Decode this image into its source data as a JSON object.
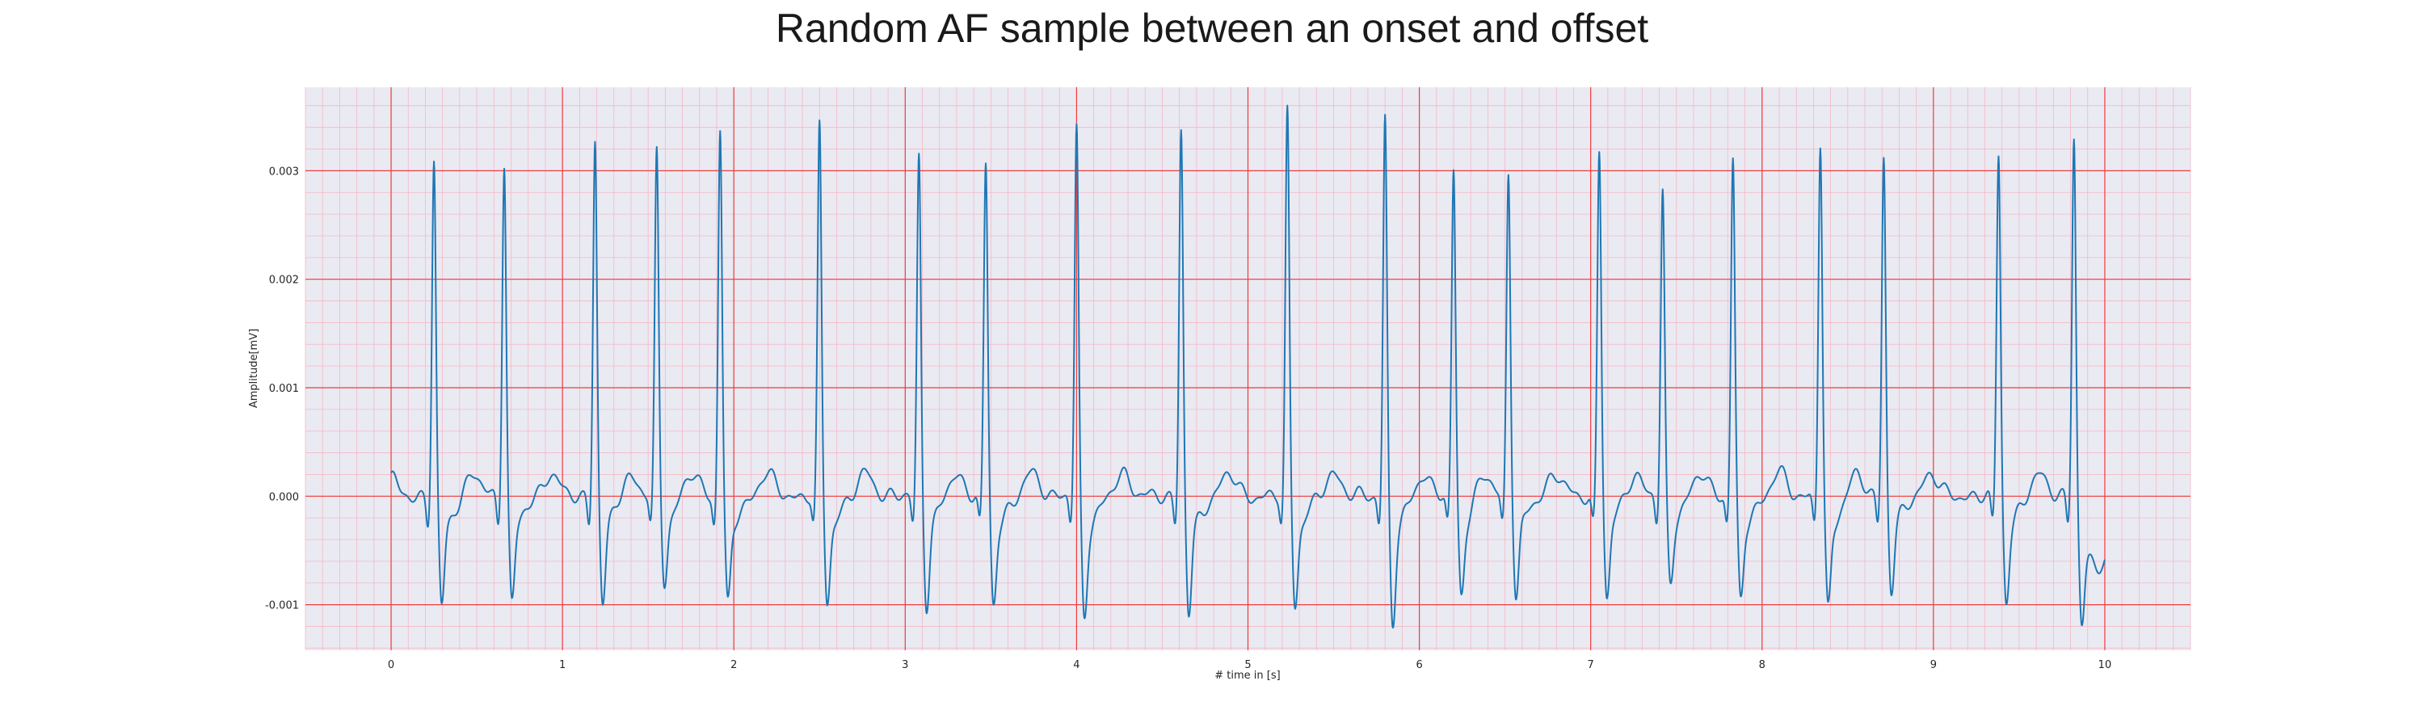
{
  "chart_data": {
    "type": "line",
    "title": "Random AF sample between an onset and offset",
    "xlabel": "# time in [s]",
    "ylabel": "Amplitude[mV]",
    "xlim": [
      -0.5,
      10.5
    ],
    "ylim": [
      -0.00142,
      0.00377
    ],
    "x_ticks": [
      0,
      1,
      2,
      3,
      4,
      5,
      6,
      7,
      8,
      9,
      10
    ],
    "x_tick_labels": [
      "0",
      "1",
      "2",
      "3",
      "4",
      "5",
      "6",
      "7",
      "8",
      "9",
      "10"
    ],
    "y_ticks": [
      -0.001,
      0.0,
      0.001,
      0.002,
      0.003
    ],
    "y_tick_labels": [
      "-0.001",
      "0.000",
      "0.001",
      "0.002",
      "0.003"
    ],
    "grid": true,
    "minor_grid": true,
    "series": [
      {
        "color": "#1f77b4",
        "beats": [
          {
            "t": 0.25,
            "r": 0.0031,
            "s": -0.00102
          },
          {
            "t": 0.66,
            "r": 0.0031,
            "s": -0.00098
          },
          {
            "t": 1.19,
            "r": 0.0033,
            "s": -0.001
          },
          {
            "t": 1.55,
            "r": 0.00315,
            "s": -0.00078
          },
          {
            "t": 1.92,
            "r": 0.0034,
            "s": -0.001
          },
          {
            "t": 2.5,
            "r": 0.0034,
            "s": -0.00098
          },
          {
            "t": 3.08,
            "r": 0.00315,
            "s": -0.001
          },
          {
            "t": 3.47,
            "r": 0.00305,
            "s": -0.001
          },
          {
            "t": 4.0,
            "r": 0.0034,
            "s": -0.0011
          },
          {
            "t": 4.61,
            "r": 0.0034,
            "s": -0.0011
          },
          {
            "t": 5.23,
            "r": 0.00355,
            "s": -0.001
          },
          {
            "t": 5.8,
            "r": 0.0035,
            "s": -0.00117
          },
          {
            "t": 6.2,
            "r": 0.003,
            "s": -0.0009
          },
          {
            "t": 6.52,
            "r": 0.003,
            "s": -0.00093
          },
          {
            "t": 7.05,
            "r": 0.0032,
            "s": -0.00095
          },
          {
            "t": 7.42,
            "r": 0.0028,
            "s": -0.00078
          },
          {
            "t": 7.83,
            "r": 0.0031,
            "s": -0.00097
          },
          {
            "t": 8.34,
            "r": 0.00325,
            "s": -0.00105
          },
          {
            "t": 8.71,
            "r": 0.00315,
            "s": -0.00087
          },
          {
            "t": 9.38,
            "r": 0.00315,
            "s": -0.00095
          },
          {
            "t": 9.82,
            "r": 0.00335,
            "s": -0.00103
          }
        ],
        "x_start": 0.0,
        "x_end": 10.0,
        "y_start": 0.00018,
        "y_end": -0.0006
      }
    ]
  }
}
